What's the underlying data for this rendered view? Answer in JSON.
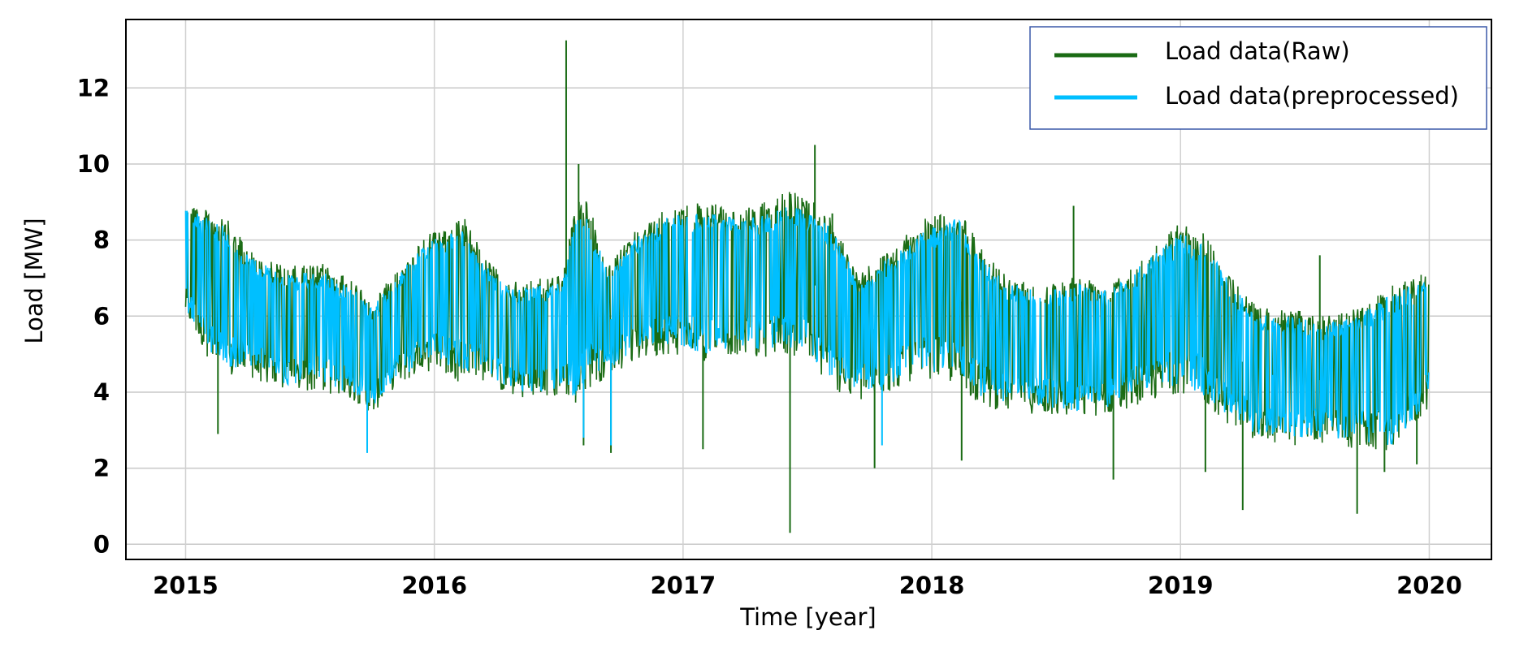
{
  "chart_data": {
    "type": "line",
    "xlabel": "Time [year]",
    "ylabel": "Load [MW]",
    "xlim": [
      2014.76,
      2020.25
    ],
    "ylim": [
      -0.4,
      13.8
    ],
    "xticks": [
      2015,
      2016,
      2017,
      2018,
      2019,
      2020
    ],
    "xtick_labels": [
      "2015",
      "2016",
      "2017",
      "2018",
      "2019",
      "2020"
    ],
    "yticks": [
      0,
      2,
      4,
      6,
      8,
      10,
      12
    ],
    "ytick_labels": [
      "0",
      "2",
      "4",
      "6",
      "8",
      "10",
      "12"
    ],
    "grid": true,
    "legend_position": "top-right",
    "series": [
      {
        "name": "Load data(Raw)",
        "color": "#1a6b14",
        "envelope_x": [
          2015.0,
          2015.08,
          2015.15,
          2015.25,
          2015.4,
          2015.55,
          2015.7,
          2015.75,
          2015.85,
          2016.0,
          2016.12,
          2016.2,
          2016.3,
          2016.45,
          2016.52,
          2016.57,
          2016.62,
          2016.7,
          2016.8,
          2016.95,
          2017.1,
          2017.2,
          2017.3,
          2017.42,
          2017.5,
          2017.6,
          2017.7,
          2017.8,
          2017.95,
          2018.1,
          2018.2,
          2018.3,
          2018.45,
          2018.58,
          2018.7,
          2018.85,
          2019.0,
          2019.1,
          2019.2,
          2019.3,
          2019.45,
          2019.58,
          2019.7,
          2019.85,
          2020.0
        ],
        "envelope_max": [
          9.2,
          8.8,
          8.7,
          7.8,
          7.3,
          7.4,
          6.8,
          6.4,
          7.3,
          8.3,
          8.6,
          7.6,
          6.9,
          7.0,
          7.2,
          9.3,
          9.0,
          7.3,
          8.2,
          8.9,
          9.0,
          8.8,
          8.9,
          9.3,
          9.2,
          8.6,
          7.2,
          7.6,
          8.5,
          8.9,
          7.8,
          7.1,
          6.8,
          7.1,
          6.9,
          7.6,
          8.5,
          8.2,
          7.1,
          6.3,
          6.2,
          6.0,
          6.2,
          6.8,
          7.2
        ],
        "envelope_min": [
          6.0,
          5.0,
          4.3,
          4.4,
          4.0,
          4.0,
          3.7,
          3.4,
          4.2,
          4.6,
          4.2,
          4.3,
          3.9,
          3.7,
          4.0,
          3.6,
          4.1,
          4.4,
          4.8,
          5.0,
          4.8,
          5.0,
          4.9,
          5.0,
          4.8,
          4.1,
          3.7,
          3.9,
          4.4,
          4.2,
          3.6,
          3.5,
          3.4,
          3.3,
          3.4,
          3.7,
          4.0,
          3.7,
          3.1,
          2.7,
          2.6,
          2.6,
          2.5,
          2.4,
          3.6
        ],
        "spikes": [
          {
            "x": 2015.13,
            "y": 2.9
          },
          {
            "x": 2016.53,
            "y": 13.25
          },
          {
            "x": 2016.58,
            "y": 10.0
          },
          {
            "x": 2016.6,
            "y": 2.6
          },
          {
            "x": 2016.71,
            "y": 2.4
          },
          {
            "x": 2017.08,
            "y": 2.5
          },
          {
            "x": 2017.43,
            "y": 0.3
          },
          {
            "x": 2017.53,
            "y": 10.5
          },
          {
            "x": 2017.6,
            "y": 8.7
          },
          {
            "x": 2017.77,
            "y": 2.0
          },
          {
            "x": 2018.12,
            "y": 2.2
          },
          {
            "x": 2018.57,
            "y": 8.9
          },
          {
            "x": 2018.73,
            "y": 1.7
          },
          {
            "x": 2019.1,
            "y": 1.9
          },
          {
            "x": 2019.25,
            "y": 0.9
          },
          {
            "x": 2019.56,
            "y": 7.6
          },
          {
            "x": 2019.71,
            "y": 0.8
          },
          {
            "x": 2019.82,
            "y": 1.9
          },
          {
            "x": 2019.95,
            "y": 2.1
          }
        ]
      },
      {
        "name": "Load data(preprocessed)",
        "color": "#00bfff",
        "envelope_x": [
          2015.0,
          2015.08,
          2015.15,
          2015.25,
          2015.4,
          2015.55,
          2015.7,
          2015.75,
          2015.85,
          2016.0,
          2016.12,
          2016.2,
          2016.3,
          2016.45,
          2016.52,
          2016.57,
          2016.62,
          2016.7,
          2016.8,
          2016.95,
          2017.1,
          2017.2,
          2017.3,
          2017.42,
          2017.5,
          2017.6,
          2017.7,
          2017.8,
          2017.95,
          2018.1,
          2018.2,
          2018.3,
          2018.45,
          2018.58,
          2018.7,
          2018.85,
          2019.0,
          2019.1,
          2019.2,
          2019.3,
          2019.45,
          2019.58,
          2019.7,
          2019.85,
          2020.0
        ],
        "envelope_max": [
          8.9,
          8.6,
          8.4,
          7.6,
          7.1,
          7.2,
          6.6,
          6.2,
          7.1,
          8.1,
          8.3,
          7.4,
          6.7,
          6.8,
          7.0,
          8.8,
          8.6,
          7.1,
          8.0,
          8.7,
          8.8,
          8.6,
          8.6,
          8.9,
          8.8,
          8.3,
          7.0,
          7.4,
          8.2,
          8.6,
          7.6,
          6.9,
          6.6,
          6.9,
          6.7,
          7.4,
          8.2,
          7.9,
          6.9,
          6.1,
          6.0,
          5.8,
          6.0,
          6.6,
          7.0
        ],
        "envelope_min": [
          6.2,
          5.2,
          4.6,
          4.6,
          4.2,
          4.2,
          3.9,
          3.6,
          4.4,
          4.8,
          4.4,
          4.5,
          4.1,
          3.9,
          4.2,
          3.8,
          4.3,
          4.6,
          5.0,
          5.2,
          5.0,
          5.2,
          5.1,
          5.2,
          5.0,
          4.3,
          3.9,
          4.1,
          4.6,
          4.4,
          3.8,
          3.7,
          3.6,
          3.5,
          3.6,
          3.9,
          4.2,
          3.9,
          3.3,
          2.9,
          2.8,
          2.8,
          2.7,
          2.6,
          3.8
        ],
        "dips": [
          {
            "x": 2015.73,
            "y": 2.4
          },
          {
            "x": 2016.6,
            "y": 2.8
          },
          {
            "x": 2016.71,
            "y": 2.6
          },
          {
            "x": 2017.8,
            "y": 2.6
          },
          {
            "x": 2019.37,
            "y": 2.9
          }
        ]
      }
    ]
  }
}
